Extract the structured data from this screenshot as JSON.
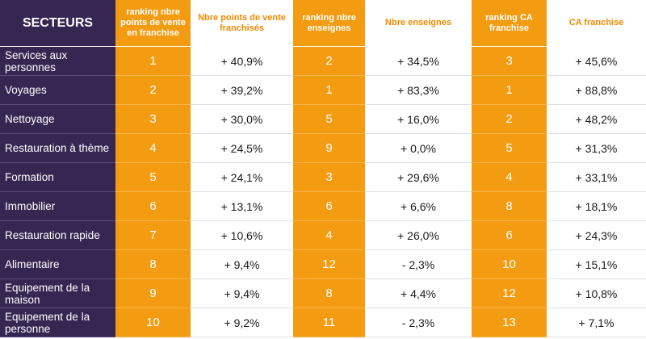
{
  "headers": {
    "secteurs": "SECTEURS",
    "rank_points": "ranking nbre points de vente en franchise",
    "points": "Nbre points de vente franchisés",
    "rank_enseignes": "ranking nbre enseignes",
    "enseignes": "Nbre enseignes",
    "rank_ca": "ranking CA franchise",
    "ca": "CA franchise"
  },
  "rows": [
    {
      "secteur": "Services aux personnes",
      "rank_points": "1",
      "points": "+ 40,9%",
      "rank_enseignes": "2",
      "enseignes": "+ 34,5%",
      "rank_ca": "3",
      "ca": "+ 45,6%"
    },
    {
      "secteur": "Voyages",
      "rank_points": "2",
      "points": "+ 39,2%",
      "rank_enseignes": "1",
      "enseignes": "+ 83,3%",
      "rank_ca": "1",
      "ca": "+ 88,8%"
    },
    {
      "secteur": "Nettoyage",
      "rank_points": "3",
      "points": "+ 30,0%",
      "rank_enseignes": "5",
      "enseignes": "+ 16,0%",
      "rank_ca": "2",
      "ca": "+ 48,2%"
    },
    {
      "secteur": "Restauration à thème",
      "rank_points": "4",
      "points": "+ 24,5%",
      "rank_enseignes": "9",
      "enseignes": "+ 0,0%",
      "rank_ca": "5",
      "ca": "+ 31,3%"
    },
    {
      "secteur": "Formation",
      "rank_points": "5",
      "points": "+ 24,1%",
      "rank_enseignes": "3",
      "enseignes": "+ 29,6%",
      "rank_ca": "4",
      "ca": "+ 33,1%"
    },
    {
      "secteur": "Immobilier",
      "rank_points": "6",
      "points": "+ 13,1%",
      "rank_enseignes": "6",
      "enseignes": "+ 6,6%",
      "rank_ca": "8",
      "ca": "+ 18,1%"
    },
    {
      "secteur": "Restauration rapide",
      "rank_points": "7",
      "points": "+ 10,6%",
      "rank_enseignes": "4",
      "enseignes": "+ 26,0%",
      "rank_ca": "6",
      "ca": "+ 24,3%"
    },
    {
      "secteur": "Alimentaire",
      "rank_points": "8",
      "points": "+ 9,4%",
      "rank_enseignes": "12",
      "enseignes": "- 2,3%",
      "rank_ca": "10",
      "ca": "+ 15,1%"
    },
    {
      "secteur": "Equipement de la maison",
      "rank_points": "9",
      "points": "+ 9,4%",
      "rank_enseignes": "8",
      "enseignes": "+ 4,4%",
      "rank_ca": "12",
      "ca": "+ 10,8%"
    },
    {
      "secteur": "Equipement de la personne",
      "rank_points": "10",
      "points": "+ 9,2%",
      "rank_enseignes": "11",
      "enseignes": "- 2,3%",
      "rank_ca": "13",
      "ca": "+ 7,1%"
    }
  ],
  "colors": {
    "sector_bg": "#362652",
    "rank_bg": "#f39c12",
    "header_text_orange": "#f08a00",
    "value_bg": "#ffffff"
  }
}
